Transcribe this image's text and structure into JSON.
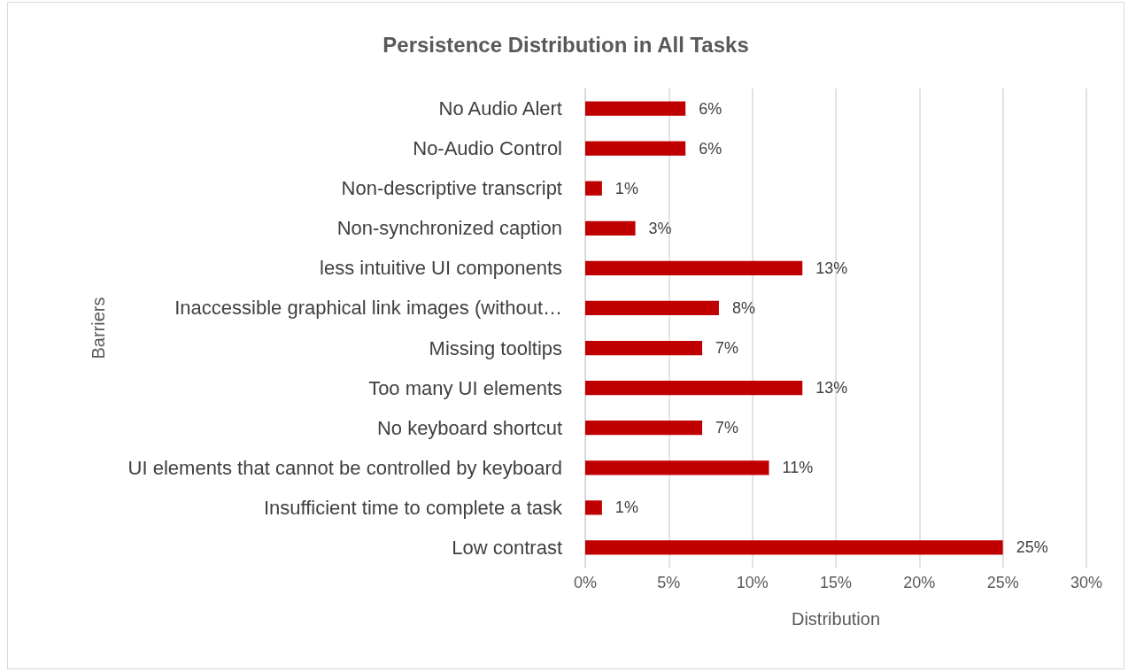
{
  "chart_data": {
    "type": "bar",
    "orientation": "horizontal",
    "title": "Persistence Distribution in All Tasks",
    "xlabel": "Distribution",
    "ylabel": "Barriers",
    "categories": [
      "No Audio Alert",
      "No-Audio Control",
      "Non-descriptive transcript",
      "Non-synchronized caption",
      "less intuitive UI components",
      "Inaccessible graphical link images (without…",
      "Missing tooltips",
      "Too many UI elements",
      "No keyboard shortcut",
      "UI elements that cannot be controlled by keyboard",
      "Insufficient time to complete a task",
      "Low contrast"
    ],
    "values": [
      6,
      6,
      1,
      3,
      13,
      8,
      7,
      13,
      7,
      11,
      1,
      25
    ],
    "value_labels": [
      "6%",
      "6%",
      "1%",
      "3%",
      "13%",
      "8%",
      "7%",
      "13%",
      "7%",
      "11%",
      "1%",
      "25%"
    ],
    "color": "#c00000",
    "xlim": [
      0,
      30
    ],
    "xticks": [
      {
        "value": 0,
        "label": "0%"
      },
      {
        "value": 5,
        "label": "5%"
      },
      {
        "value": 10,
        "label": "10%"
      },
      {
        "value": 15,
        "label": "15%"
      },
      {
        "value": 20,
        "label": "20%"
      },
      {
        "value": 25,
        "label": "25%"
      },
      {
        "value": 30,
        "label": "30%"
      }
    ],
    "grid": "x"
  }
}
